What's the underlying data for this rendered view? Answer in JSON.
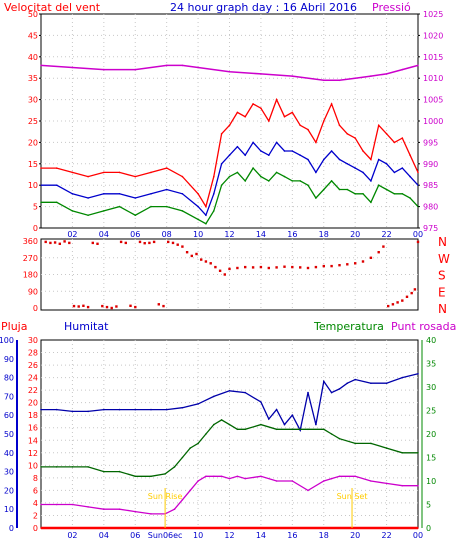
{
  "header": {
    "title": "24 hour graph day : 16 Abril 2016"
  },
  "colors": {
    "wind": "#ff0000",
    "gust": "#ff0000",
    "wind_avg": "#0000cc",
    "wind_min": "#008800",
    "pressure": "#cc00cc",
    "direction": "#dd0000",
    "rain": "#ff0000",
    "humidity": "#0000aa",
    "temperature": "#006600",
    "dewpoint": "#cc00cc",
    "label_red": "#ff0000",
    "label_blue": "#0000cc",
    "label_green": "#008800",
    "label_magenta": "#cc00cc",
    "sun": "#ffcc00",
    "grid": "#c8c8c8"
  },
  "chart_data": [
    {
      "type": "line",
      "id": "wind_pressure",
      "labels": {
        "left": "Velocitat del vent",
        "right": "Pressió"
      },
      "left_ticks": [
        "0",
        "5",
        "10",
        "15",
        "20",
        "25",
        "30",
        "35",
        "40",
        "45",
        "50"
      ],
      "right_ticks": [
        "975",
        "980",
        "985",
        "990",
        "995",
        "1000",
        "1005",
        "1010",
        "1015",
        "1020",
        "1025"
      ],
      "ylim_left": [
        0,
        50
      ],
      "ylim_right": [
        975,
        1025
      ],
      "x_ticks": [
        "02",
        "04",
        "06",
        "08",
        "10",
        "12",
        "14",
        "16",
        "18",
        "20",
        "22",
        "00"
      ],
      "xlim": [
        0,
        24
      ],
      "series": [
        {
          "key": "gust",
          "x": [
            0,
            1,
            2,
            3,
            4,
            5,
            6,
            7,
            8,
            9,
            10,
            10.5,
            11,
            11.5,
            12,
            12.5,
            13,
            13.5,
            14,
            14.5,
            15,
            15.5,
            16,
            16.5,
            17,
            17.5,
            18,
            18.5,
            19,
            19.5,
            20,
            20.5,
            21,
            21.5,
            22,
            22.5,
            23,
            23.5,
            24
          ],
          "y": [
            14,
            14,
            13,
            12,
            13,
            13,
            12,
            13,
            14,
            12,
            8,
            5,
            12,
            22,
            24,
            27,
            26,
            29,
            28,
            25,
            30,
            26,
            27,
            24,
            23,
            20,
            25,
            29,
            24,
            22,
            21,
            18,
            16,
            24,
            22,
            20,
            21,
            17,
            13
          ]
        },
        {
          "key": "avg",
          "x": [
            0,
            1,
            2,
            3,
            4,
            5,
            6,
            7,
            8,
            9,
            10,
            10.5,
            11,
            11.5,
            12,
            12.5,
            13,
            13.5,
            14,
            14.5,
            15,
            15.5,
            16,
            16.5,
            17,
            17.5,
            18,
            18.5,
            19,
            19.5,
            20,
            20.5,
            21,
            21.5,
            22,
            22.5,
            23,
            23.5,
            24
          ],
          "y": [
            10,
            10,
            8,
            7,
            8,
            8,
            7,
            8,
            9,
            8,
            5,
            3,
            8,
            15,
            17,
            19,
            17,
            20,
            18,
            17,
            20,
            18,
            18,
            17,
            16,
            13,
            16,
            18,
            16,
            15,
            14,
            13,
            11,
            16,
            15,
            13,
            14,
            12,
            10
          ]
        },
        {
          "key": "min",
          "x": [
            0,
            1,
            2,
            3,
            4,
            5,
            6,
            7,
            8,
            9,
            10,
            10.5,
            11,
            11.5,
            12,
            12.5,
            13,
            13.5,
            14,
            14.5,
            15,
            15.5,
            16,
            16.5,
            17,
            17.5,
            18,
            18.5,
            19,
            19.5,
            20,
            20.5,
            21,
            21.5,
            22,
            22.5,
            23,
            23.5,
            24
          ],
          "y": [
            6,
            6,
            4,
            3,
            4,
            5,
            3,
            5,
            5,
            4,
            2,
            1,
            4,
            10,
            12,
            13,
            11,
            14,
            12,
            11,
            13,
            12,
            11,
            11,
            10,
            7,
            9,
            11,
            9,
            9,
            8,
            8,
            6,
            10,
            9,
            8,
            8,
            7,
            5
          ]
        },
        {
          "key": "pressure",
          "x": [
            0,
            2,
            4,
            6,
            8,
            9,
            10,
            12,
            14,
            16,
            18,
            19,
            20,
            21,
            22,
            23,
            24
          ],
          "y": [
            1013,
            1012.5,
            1012,
            1012,
            1013,
            1013,
            1012.5,
            1011.5,
            1011,
            1010.5,
            1009.5,
            1009.5,
            1010,
            1010.5,
            1011,
            1012,
            1013
          ],
          "axis": "right"
        }
      ]
    },
    {
      "type": "scatter",
      "id": "direction",
      "left_ticks": [
        "0",
        "90",
        "180",
        "270",
        "360"
      ],
      "right_ticks": [
        "N",
        "W",
        "S",
        "E",
        "N"
      ],
      "ylim": [
        0,
        360
      ],
      "xlim": [
        0,
        24
      ],
      "x_ticks": [],
      "series": [
        {
          "key": "direction",
          "points": [
            [
              0.3,
              355
            ],
            [
              0.6,
              350
            ],
            [
              0.9,
              352
            ],
            [
              1.2,
              345
            ],
            [
              1.5,
              358
            ],
            [
              1.8,
              350
            ],
            [
              2.1,
              10
            ],
            [
              2.4,
              8
            ],
            [
              2.7,
              12
            ],
            [
              3.0,
              5
            ],
            [
              3.3,
              350
            ],
            [
              3.6,
              345
            ],
            [
              3.9,
              10
            ],
            [
              4.2,
              5
            ],
            [
              4.5,
              0
            ],
            [
              4.8,
              8
            ],
            [
              5.1,
              355
            ],
            [
              5.4,
              350
            ],
            [
              5.7,
              12
            ],
            [
              6.0,
              5
            ],
            [
              6.3,
              355
            ],
            [
              6.6,
              348
            ],
            [
              6.9,
              350
            ],
            [
              7.2,
              355
            ],
            [
              7.5,
              20
            ],
            [
              7.8,
              10
            ],
            [
              8.1,
              355
            ],
            [
              8.4,
              350
            ],
            [
              8.7,
              340
            ],
            [
              9.0,
              330
            ],
            [
              9.3,
              300
            ],
            [
              9.6,
              280
            ],
            [
              9.9,
              290
            ],
            [
              10.2,
              260
            ],
            [
              10.5,
              250
            ],
            [
              10.8,
              240
            ],
            [
              11.1,
              220
            ],
            [
              11.4,
              200
            ],
            [
              11.7,
              180
            ],
            [
              12.0,
              210
            ],
            [
              12.5,
              215
            ],
            [
              13,
              220
            ],
            [
              13.5,
              218
            ],
            [
              14,
              220
            ],
            [
              14.5,
              215
            ],
            [
              15,
              218
            ],
            [
              15.5,
              222
            ],
            [
              16,
              220
            ],
            [
              16.5,
              218
            ],
            [
              17,
              215
            ],
            [
              17.5,
              220
            ],
            [
              18,
              225
            ],
            [
              18.5,
              225
            ],
            [
              19,
              230
            ],
            [
              19.5,
              235
            ],
            [
              20,
              240
            ],
            [
              20.5,
              250
            ],
            [
              21,
              270
            ],
            [
              21.5,
              300
            ],
            [
              21.8,
              330
            ],
            [
              22.1,
              10
            ],
            [
              22.4,
              20
            ],
            [
              22.7,
              30
            ],
            [
              23.0,
              40
            ],
            [
              23.3,
              60
            ],
            [
              23.6,
              80
            ],
            [
              23.8,
              100
            ],
            [
              24.0,
              355
            ]
          ]
        }
      ]
    },
    {
      "type": "line",
      "id": "temp_humidity",
      "labels": {
        "rain": "Pluja",
        "humidity": "Humitat",
        "temperature": "Temperatura",
        "dewpoint": "Punt rosada"
      },
      "rain_ticks": [
        "0",
        "10",
        "20",
        "30",
        "40",
        "50",
        "60",
        "70",
        "80",
        "90",
        "100"
      ],
      "humidity_ticks": [
        "0",
        "2",
        "4",
        "6",
        "8",
        "10",
        "12",
        "14",
        "16",
        "18",
        "20",
        "22",
        "24",
        "26",
        "28",
        "30"
      ],
      "temp_ticks": [
        "0",
        "5",
        "10",
        "15",
        "20",
        "25",
        "30",
        "35",
        "40"
      ],
      "ylim_rain": [
        0,
        100
      ],
      "ylim_humidity": [
        0,
        30
      ],
      "ylim_temp": [
        0,
        40
      ],
      "x_ticks": [
        "02",
        "04",
        "06",
        "08",
        "10",
        "12",
        "14",
        "16",
        "18",
        "20",
        "22",
        "00"
      ],
      "x_special": {
        "sunrise": "Sun Rise",
        "sunset": "Sun Set",
        "sunrise_tick": "Sun06ec",
        "sunset_tick": "20"
      },
      "sun_times": [
        7.9,
        19.8
      ],
      "xlim": [
        0,
        24
      ],
      "series": [
        {
          "key": "humidity",
          "x": [
            0,
            1,
            2,
            3,
            4,
            5,
            6,
            7,
            8,
            9,
            10,
            11,
            12,
            13,
            14,
            14.5,
            15,
            15.5,
            16,
            16.5,
            17,
            17.5,
            18,
            18.5,
            19,
            19.5,
            20,
            21,
            22,
            23,
            24
          ],
          "y": [
            63,
            63,
            62,
            62,
            63,
            63,
            63,
            63,
            63,
            64,
            66,
            70,
            73,
            72,
            67,
            58,
            63,
            55,
            60,
            52,
            72,
            55,
            78,
            72,
            74,
            77,
            79,
            77,
            77,
            80,
            82
          ]
        },
        {
          "key": "temperature",
          "x": [
            0,
            1,
            2,
            3,
            4,
            5,
            6,
            7,
            7.9,
            8.5,
            9,
            9.5,
            10,
            10.5,
            11,
            11.5,
            12,
            12.5,
            13,
            14,
            15,
            16,
            17,
            18,
            18.5,
            19,
            20,
            21,
            22,
            23,
            24
          ],
          "y": [
            13,
            13,
            13,
            13,
            12,
            12,
            11,
            11,
            11.5,
            13,
            15,
            17,
            18,
            20,
            22,
            23,
            22,
            21,
            21,
            22,
            21,
            21,
            21,
            21,
            20,
            19,
            18,
            18,
            17,
            16,
            16
          ]
        },
        {
          "key": "dewpoint",
          "x": [
            0,
            1,
            2,
            3,
            4,
            5,
            6,
            7,
            7.9,
            8.5,
            9,
            9.5,
            10,
            10.5,
            11,
            11.5,
            12,
            12.5,
            13,
            14,
            15,
            16,
            17,
            18,
            18.5,
            19,
            20,
            21,
            22,
            23,
            24
          ],
          "y": [
            5,
            5,
            5,
            4.5,
            4,
            4,
            3.5,
            3,
            3,
            4,
            6,
            8,
            10,
            11,
            11,
            11,
            10.5,
            11,
            10.5,
            11,
            10,
            10,
            8,
            10,
            10.5,
            11,
            11,
            10,
            9.5,
            9,
            9
          ]
        },
        {
          "key": "rain",
          "x": [
            0,
            24
          ],
          "y": [
            0,
            0
          ],
          "axis": "rain"
        }
      ]
    }
  ]
}
